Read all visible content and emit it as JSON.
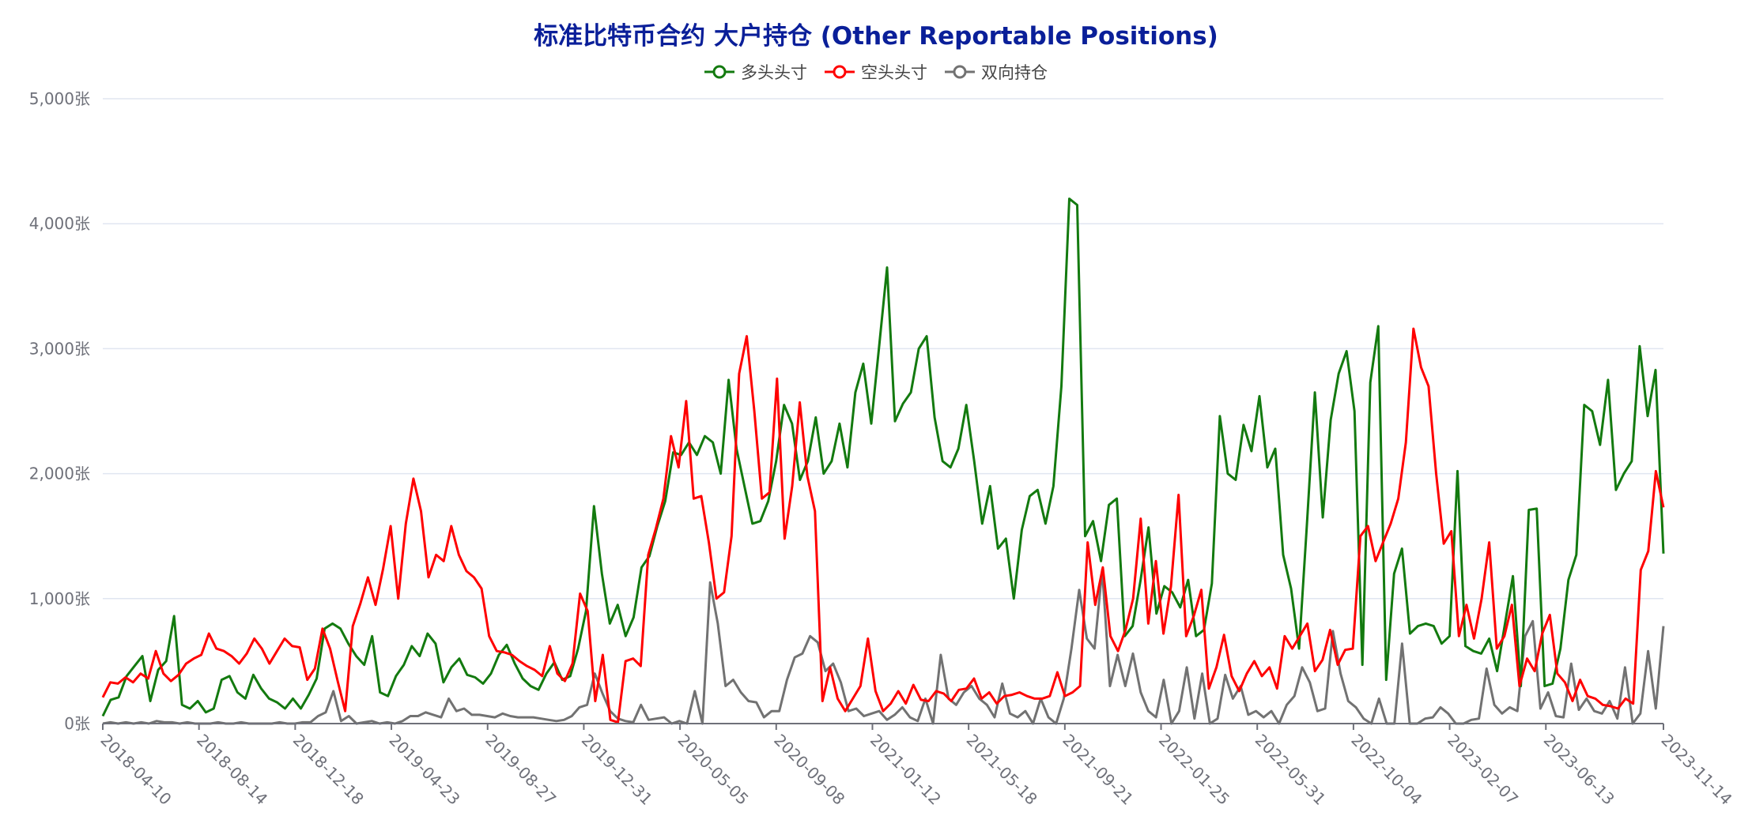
{
  "title": "标准比特币合约 大户持仓 (Other Reportable Positions)",
  "legend": [
    {
      "label": "多头头寸",
      "color": "#137a0f"
    },
    {
      "label": "空头头寸",
      "color": "#ff0000"
    },
    {
      "label": "双向持仓",
      "color": "#727272"
    }
  ],
  "chart_data": {
    "type": "line",
    "title": "标准比特币合约 大户持仓 (Other Reportable Positions)",
    "xlabel": "",
    "ylabel": "",
    "y_unit": "张",
    "ylim": [
      0,
      5000
    ],
    "y_ticks": [
      "0张",
      "1,000张",
      "2,000张",
      "3,000张",
      "4,000张",
      "5,000张"
    ],
    "x_tick_labels": [
      "2018-04-10",
      "2018-08-14",
      "2018-12-18",
      "2019-04-23",
      "2019-08-27",
      "2019-12-31",
      "2020-05-05",
      "2020-09-08",
      "2021-01-12",
      "2021-05-18",
      "2021-09-21",
      "2022-01-25",
      "2022-05-31",
      "2022-10-04",
      "2023-02-07",
      "2023-06-13",
      "2023-11-14"
    ],
    "x_start": "2018-04-10",
    "x_end": "2023-11-14",
    "x_step_weeks": 2,
    "grid": true,
    "legend_position": "top",
    "series": [
      {
        "name": "多头头寸",
        "color": "#137a0f",
        "values": [
          60,
          190,
          210,
          380,
          460,
          540,
          180,
          430,
          500,
          860,
          150,
          120,
          180,
          90,
          120,
          350,
          380,
          250,
          200,
          390,
          280,
          200,
          170,
          120,
          200,
          120,
          230,
          360,
          760,
          800,
          760,
          640,
          540,
          470,
          700,
          250,
          220,
          380,
          470,
          620,
          540,
          720,
          640,
          330,
          450,
          520,
          390,
          370,
          320,
          400,
          550,
          630,
          480,
          360,
          300,
          270,
          400,
          490,
          350,
          380,
          600,
          900,
          1740,
          1200,
          800,
          950,
          700,
          850,
          1250,
          1340,
          1580,
          1780,
          2170,
          2150,
          2250,
          2150,
          2300,
          2250,
          2000,
          2750,
          2200,
          1900,
          1600,
          1620,
          1780,
          2100,
          2550,
          2400,
          1950,
          2100,
          2450,
          2000,
          2100,
          2400,
          2050,
          2650,
          2880,
          2400,
          3020,
          3650,
          2420,
          2560,
          2650,
          3000,
          3100,
          2450,
          2100,
          2050,
          2200,
          2550,
          2100,
          1600,
          1900,
          1400,
          1480,
          1000,
          1550,
          1820,
          1870,
          1600,
          1900,
          2700,
          4200,
          4150,
          1500,
          1620,
          1300,
          1750,
          1800,
          700,
          780,
          1150,
          1570,
          880,
          1100,
          1050,
          930,
          1150,
          700,
          750,
          1120,
          2460,
          2000,
          1950,
          2390,
          2180,
          2620,
          2050,
          2200,
          1350,
          1080,
          600,
          1600,
          2650,
          1650,
          2430,
          2800,
          2980,
          2500,
          470,
          2730,
          3180,
          350,
          1200,
          1400,
          720,
          780,
          800,
          780,
          640,
          700,
          2020,
          620,
          580,
          560,
          680,
          420,
          800,
          1180,
          300,
          1710,
          1720,
          300,
          320,
          600,
          1150,
          1350,
          2550,
          2500,
          2230,
          2750,
          1870,
          2000,
          2100,
          3020,
          2460,
          2830,
          1360
        ]
      },
      {
        "name": "空头头寸",
        "color": "#ff0000",
        "values": [
          210,
          330,
          320,
          370,
          330,
          400,
          360,
          580,
          400,
          340,
          390,
          480,
          520,
          550,
          720,
          600,
          580,
          540,
          480,
          560,
          680,
          600,
          480,
          580,
          680,
          620,
          610,
          350,
          440,
          760,
          600,
          340,
          100,
          780,
          960,
          1170,
          950,
          1240,
          1580,
          1000,
          1600,
          1960,
          1700,
          1170,
          1350,
          1300,
          1580,
          1350,
          1220,
          1170,
          1080,
          700,
          580,
          570,
          550,
          500,
          460,
          430,
          380,
          620,
          400,
          340,
          480,
          1040,
          900,
          180,
          550,
          30,
          10,
          500,
          520,
          460,
          1350,
          1560,
          1800,
          2300,
          2050,
          2580,
          1800,
          1820,
          1450,
          1000,
          1050,
          1500,
          2800,
          3100,
          2500,
          1800,
          1850,
          2760,
          1480,
          1900,
          2570,
          1980,
          1700,
          180,
          450,
          200,
          100,
          200,
          300,
          680,
          260,
          100,
          160,
          260,
          160,
          310,
          190,
          180,
          260,
          240,
          180,
          270,
          280,
          360,
          200,
          250,
          160,
          220,
          230,
          250,
          220,
          200,
          200,
          220,
          410,
          220,
          250,
          300,
          1450,
          950,
          1250,
          700,
          580,
          750,
          1000,
          1640,
          800,
          1300,
          720,
          1100,
          1830,
          700,
          860,
          1070,
          280,
          450,
          710,
          380,
          260,
          400,
          500,
          380,
          450,
          280,
          700,
          600,
          700,
          800,
          420,
          510,
          750,
          470,
          590,
          600,
          1500,
          1580,
          1300,
          1450,
          1600,
          1800,
          2250,
          3160,
          2850,
          2700,
          2000,
          1440,
          1540,
          700,
          950,
          680,
          1000,
          1450,
          600,
          700,
          950,
          300,
          520,
          420,
          720,
          870,
          400,
          330,
          180,
          350,
          220,
          200,
          150,
          140,
          120,
          200,
          160,
          1230,
          1380,
          2020,
          1730
        ]
      },
      {
        "name": "双向持仓",
        "color": "#727272",
        "values": [
          0,
          10,
          0,
          10,
          0,
          10,
          0,
          20,
          10,
          10,
          0,
          10,
          0,
          0,
          0,
          10,
          0,
          0,
          10,
          0,
          0,
          0,
          0,
          10,
          0,
          0,
          10,
          10,
          60,
          90,
          260,
          20,
          60,
          0,
          10,
          20,
          0,
          10,
          0,
          20,
          60,
          60,
          90,
          70,
          50,
          200,
          100,
          120,
          70,
          70,
          60,
          50,
          80,
          60,
          50,
          50,
          50,
          40,
          30,
          20,
          30,
          60,
          130,
          150,
          400,
          240,
          100,
          40,
          20,
          10,
          150,
          30,
          40,
          50,
          0,
          20,
          0,
          260,
          0,
          1130,
          800,
          300,
          350,
          250,
          180,
          170,
          50,
          100,
          100,
          350,
          530,
          560,
          700,
          650,
          420,
          480,
          330,
          100,
          120,
          60,
          80,
          100,
          30,
          70,
          130,
          50,
          20,
          200,
          0,
          550,
          200,
          150,
          250,
          300,
          200,
          150,
          50,
          320,
          80,
          50,
          100,
          0,
          200,
          50,
          0,
          200,
          600,
          1070,
          680,
          600,
          1230,
          300,
          550,
          300,
          560,
          250,
          100,
          50,
          350,
          0,
          100,
          450,
          40,
          400,
          0,
          40,
          390,
          200,
          300,
          70,
          100,
          50,
          100,
          0,
          150,
          220,
          450,
          330,
          100,
          120,
          740,
          400,
          180,
          130,
          40,
          0,
          200,
          0,
          0,
          640,
          0,
          0,
          40,
          50,
          130,
          80,
          0,
          0,
          30,
          40,
          440,
          150,
          80,
          130,
          100,
          700,
          820,
          120,
          250,
          60,
          50,
          480,
          110,
          200,
          100,
          80,
          180,
          40,
          450,
          0,
          80,
          580,
          120,
          780
        ]
      }
    ]
  }
}
